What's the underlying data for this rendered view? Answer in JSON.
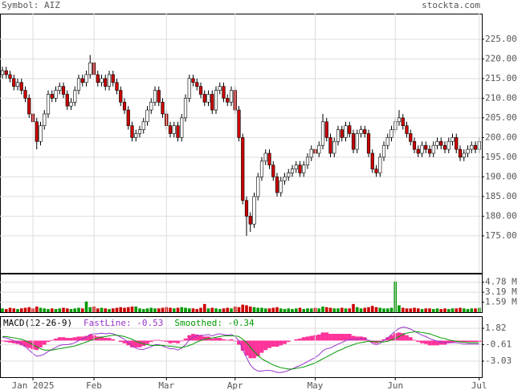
{
  "chart_data": [
    {
      "type": "candlestick",
      "title": "Symbol: AIZ",
      "source": "stockta.com",
      "open": [
        216,
        217,
        216,
        215,
        213,
        214,
        212,
        210,
        206,
        204,
        199,
        203,
        206,
        211,
        210,
        212,
        213,
        211,
        208,
        209,
        212,
        215,
        214,
        216,
        219,
        216,
        214,
        215,
        213,
        216,
        214,
        212,
        209,
        207,
        203,
        200,
        201,
        202,
        204,
        207,
        209,
        212,
        209,
        206,
        203,
        201,
        203,
        200,
        205,
        210,
        215,
        214,
        213,
        211,
        209,
        211,
        207,
        212,
        213,
        210,
        209,
        212,
        207,
        200,
        184,
        180,
        178,
        185,
        190,
        194,
        196,
        193,
        190,
        186,
        189,
        190,
        191,
        192,
        193,
        191,
        193,
        195,
        197,
        196,
        198,
        204,
        200,
        196,
        199,
        202,
        200,
        203,
        201,
        197,
        201,
        202,
        201,
        196,
        192,
        191,
        195,
        198,
        200,
        202,
        204,
        205,
        203,
        201,
        199,
        197,
        196,
        198,
        197,
        196,
        198,
        199,
        198,
        197,
        199,
        200,
        197,
        195,
        196,
        197,
        198,
        197
      ],
      "high": [
        218,
        218,
        217,
        216,
        215,
        215,
        213,
        211,
        207,
        205,
        204,
        207,
        212,
        212,
        213,
        214,
        214,
        212,
        210,
        213,
        216,
        216,
        217,
        221,
        220,
        217,
        216,
        216,
        217,
        217,
        215,
        213,
        210,
        208,
        204,
        202,
        203,
        205,
        208,
        210,
        213,
        213,
        210,
        207,
        204,
        204,
        204,
        206,
        211,
        216,
        216,
        215,
        214,
        212,
        212,
        212,
        213,
        214,
        214,
        211,
        213,
        213,
        208,
        201,
        185,
        181,
        186,
        191,
        195,
        197,
        197,
        194,
        191,
        190,
        191,
        192,
        193,
        194,
        194,
        194,
        196,
        198,
        198,
        199,
        206,
        205,
        201,
        200,
        203,
        203,
        204,
        204,
        202,
        202,
        203,
        203,
        202,
        197,
        193,
        196,
        199,
        201,
        203,
        205,
        207,
        206,
        204,
        202,
        200,
        198,
        199,
        199,
        198,
        199,
        200,
        200,
        199,
        200,
        201,
        201,
        198,
        197,
        198,
        199,
        199,
        200
      ],
      "low": [
        215,
        215,
        214,
        212,
        212,
        211,
        209,
        205,
        203,
        197,
        198,
        202,
        205,
        209,
        209,
        211,
        210,
        207,
        207,
        208,
        211,
        213,
        213,
        215,
        215,
        213,
        213,
        212,
        212,
        213,
        211,
        208,
        206,
        202,
        199,
        199,
        200,
        201,
        203,
        206,
        208,
        208,
        205,
        202,
        200,
        200,
        199,
        199,
        204,
        209,
        213,
        212,
        210,
        208,
        208,
        206,
        206,
        211,
        209,
        208,
        208,
        206,
        199,
        183,
        175,
        176,
        177,
        184,
        189,
        193,
        192,
        189,
        185,
        185,
        188,
        189,
        190,
        191,
        190,
        190,
        192,
        194,
        195,
        195,
        197,
        199,
        195,
        195,
        198,
        199,
        199,
        200,
        196,
        196,
        200,
        200,
        195,
        191,
        190,
        190,
        194,
        197,
        199,
        201,
        203,
        202,
        200,
        198,
        196,
        195,
        195,
        196,
        195,
        195,
        197,
        197,
        196,
        196,
        198,
        196,
        194,
        194,
        195,
        196,
        196,
        196
      ],
      "close": [
        217,
        216,
        215,
        213,
        214,
        212,
        210,
        206,
        204,
        199,
        203,
        206,
        211,
        210,
        212,
        213,
        211,
        208,
        209,
        212,
        215,
        214,
        216,
        219,
        216,
        214,
        215,
        213,
        216,
        214,
        212,
        209,
        207,
        203,
        200,
        201,
        202,
        204,
        207,
        209,
        212,
        209,
        206,
        203,
        201,
        203,
        200,
        205,
        210,
        215,
        214,
        213,
        211,
        209,
        211,
        207,
        212,
        213,
        210,
        209,
        212,
        207,
        200,
        184,
        180,
        178,
        185,
        190,
        194,
        196,
        193,
        190,
        186,
        189,
        190,
        191,
        192,
        193,
        191,
        193,
        195,
        197,
        196,
        198,
        204,
        200,
        196,
        199,
        202,
        200,
        203,
        201,
        197,
        201,
        202,
        201,
        196,
        192,
        191,
        195,
        198,
        200,
        202,
        204,
        205,
        203,
        201,
        199,
        197,
        196,
        198,
        197,
        196,
        198,
        199,
        198,
        197,
        199,
        200,
        197,
        195,
        196,
        197,
        198,
        197,
        199
      ],
      "up_color": "#ffffff",
      "down_color": "#cc0000",
      "ylim": [
        165.6,
        231.5
      ],
      "yticks": [
        {
          "value": 175,
          "label": "175.00"
        },
        {
          "value": 180,
          "label": "180.00"
        },
        {
          "value": 185,
          "label": "185.00"
        },
        {
          "value": 190,
          "label": "190.00"
        },
        {
          "value": 195,
          "label": "195.00"
        },
        {
          "value": 200,
          "label": "200.00"
        },
        {
          "value": 205,
          "label": "205.00"
        },
        {
          "value": 210,
          "label": "210.00"
        },
        {
          "value": 215,
          "label": "215.00"
        },
        {
          "value": 220,
          "label": "220.00"
        },
        {
          "value": 225,
          "label": "225.00"
        }
      ],
      "grid": true
    },
    {
      "type": "bar",
      "values": [
        0.6,
        0.5,
        0.7,
        0.6,
        0.5,
        0.6,
        0.7,
        0.8,
        0.6,
        0.9,
        0.7,
        0.6,
        0.5,
        0.6,
        0.5,
        0.6,
        0.7,
        0.6,
        0.5,
        0.6,
        0.7,
        0.6,
        1.7,
        0.8,
        0.9,
        0.6,
        0.7,
        0.6,
        0.5,
        0.6,
        0.7,
        0.8,
        0.7,
        0.8,
        0.9,
        0.9,
        0.6,
        0.5,
        0.6,
        0.7,
        0.6,
        0.6,
        0.7,
        0.8,
        0.7,
        0.6,
        0.7,
        0.8,
        0.7,
        0.6,
        0.6,
        0.5,
        0.7,
        1.3,
        0.6,
        0.7,
        0.6,
        0.5,
        0.6,
        0.7,
        0.6,
        0.9,
        0.8,
        1.2,
        1.1,
        0.9,
        0.8,
        0.7,
        0.7,
        0.6,
        0.6,
        0.7,
        0.8,
        0.6,
        0.5,
        0.6,
        0.5,
        0.6,
        0.7,
        0.5,
        0.6,
        0.6,
        0.7,
        0.6,
        0.9,
        0.8,
        0.7,
        0.6,
        0.6,
        0.7,
        0.6,
        0.6,
        1.3,
        0.8,
        0.6,
        0.7,
        0.8,
        1.0,
        0.8,
        0.7,
        0.6,
        0.6,
        0.7,
        4.9,
        1.1,
        0.7,
        0.6,
        0.6,
        0.7,
        0.6,
        0.5,
        0.6,
        0.6,
        0.5,
        0.6,
        0.5,
        0.6,
        0.5,
        0.6,
        0.6,
        0.7,
        0.6,
        0.5,
        0.6,
        0.6,
        0.7
      ],
      "up_color": "#009900",
      "down_color": "#cc0000",
      "ylim": [
        0,
        6.03
      ],
      "yticks": [
        {
          "value": 1.59,
          "label": "1.59 M"
        },
        {
          "value": 3.19,
          "label": "3.19 M"
        },
        {
          "value": 4.78,
          "label": "4.78 M"
        }
      ]
    },
    {
      "type": "macd",
      "title": "MACD(12-26-9)",
      "series": [
        {
          "name": "FastLine: -0.53",
          "color": "#9933cc",
          "values": [
            0.5,
            0.4,
            0.2,
            0,
            -0.2,
            -0.5,
            -0.9,
            -1.4,
            -1.9,
            -2.3,
            -2.2,
            -2.0,
            -1.6,
            -1.3,
            -1.0,
            -0.7,
            -0.6,
            -0.6,
            -0.5,
            -0.3,
            0.0,
            0.2,
            0.5,
            0.9,
            1.0,
            1.0,
            1.1,
            1.0,
            1.1,
            1.0,
            0.8,
            0.5,
            0.2,
            -0.3,
            -0.8,
            -1.1,
            -1.3,
            -1.3,
            -1.1,
            -0.9,
            -0.6,
            -0.6,
            -0.8,
            -1.0,
            -1.2,
            -1.2,
            -1.4,
            -1.1,
            -0.6,
            0.1,
            0.5,
            0.7,
            0.8,
            0.8,
            0.9,
            0.7,
            0.9,
            1.0,
            0.9,
            0.8,
            0.9,
            0.6,
            0.0,
            -1.3,
            -2.5,
            -3.6,
            -4.2,
            -4.5,
            -4.5,
            -4.4,
            -4.4,
            -4.5,
            -4.7,
            -4.7,
            -4.6,
            -4.4,
            -4.2,
            -3.9,
            -3.7,
            -3.4,
            -3.1,
            -2.8,
            -2.5,
            -2.1,
            -1.5,
            -1.2,
            -1.1,
            -0.8,
            -0.5,
            -0.3,
            0.0,
            0.2,
            0.1,
            0.2,
            0.3,
            0.3,
            0.0,
            -0.4,
            -0.6,
            -0.4,
            0.0,
            0.4,
            0.9,
            1.4,
            1.8,
            2.0,
            1.9,
            1.7,
            1.4,
            1.1,
            0.8,
            0.6,
            0.3,
            0.1,
            -0.1,
            -0.2,
            -0.3,
            -0.3,
            -0.3,
            -0.3,
            -0.4,
            -0.5,
            -0.5,
            -0.5,
            -0.5,
            -0.53
          ]
        },
        {
          "name": "Smoothed: -0.34",
          "color": "#009900",
          "values": [
            0.6,
            0.6,
            0.5,
            0.4,
            0.3,
            0.2,
            0.0,
            -0.3,
            -0.6,
            -0.9,
            -1.2,
            -1.4,
            -1.4,
            -1.4,
            -1.3,
            -1.2,
            -1.1,
            -1.0,
            -0.9,
            -0.8,
            -0.6,
            -0.4,
            -0.2,
            0.0,
            0.2,
            0.4,
            0.5,
            0.6,
            0.7,
            0.8,
            0.8,
            0.7,
            0.6,
            0.4,
            0.2,
            -0.1,
            -0.3,
            -0.5,
            -0.6,
            -0.7,
            -0.7,
            -0.7,
            -0.7,
            -0.8,
            -0.8,
            -0.9,
            -1.0,
            -1.0,
            -0.9,
            -0.7,
            -0.5,
            -0.2,
            0.0,
            0.2,
            0.3,
            0.4,
            0.5,
            0.6,
            0.7,
            0.7,
            0.7,
            0.7,
            0.6,
            0.2,
            -0.3,
            -1.0,
            -1.6,
            -2.2,
            -2.7,
            -3.0,
            -3.3,
            -3.6,
            -3.8,
            -4.0,
            -4.1,
            -4.2,
            -4.2,
            -4.1,
            -4.0,
            -3.9,
            -3.7,
            -3.5,
            -3.3,
            -3.0,
            -2.7,
            -2.4,
            -2.1,
            -1.8,
            -1.5,
            -1.3,
            -1.0,
            -0.8,
            -0.6,
            -0.4,
            -0.3,
            -0.2,
            -0.1,
            -0.1,
            -0.2,
            -0.2,
            -0.2,
            -0.1,
            0.1,
            0.3,
            0.6,
            0.9,
            1.1,
            1.2,
            1.3,
            1.3,
            1.2,
            1.1,
            1.0,
            0.8,
            0.6,
            0.4,
            0.3,
            0.1,
            0.0,
            -0.1,
            -0.2,
            -0.2,
            -0.3,
            -0.3,
            -0.3,
            -0.34
          ]
        }
      ],
      "histogram_color": "#ff3399",
      "ylim": [
        -5.4,
        3.49
      ],
      "yticks": [
        1.82,
        -0.61,
        -3.03
      ],
      "xticks": [
        {
          "value": 8,
          "label": "Jan 2025"
        },
        {
          "value": 24,
          "label": "Feb"
        },
        {
          "value": 43,
          "label": "Mar"
        },
        {
          "value": 61,
          "label": "Apr"
        },
        {
          "value": 82,
          "label": "May"
        },
        {
          "value": 103,
          "label": "Jun"
        },
        {
          "value": 125,
          "label": "Jul"
        }
      ]
    }
  ]
}
